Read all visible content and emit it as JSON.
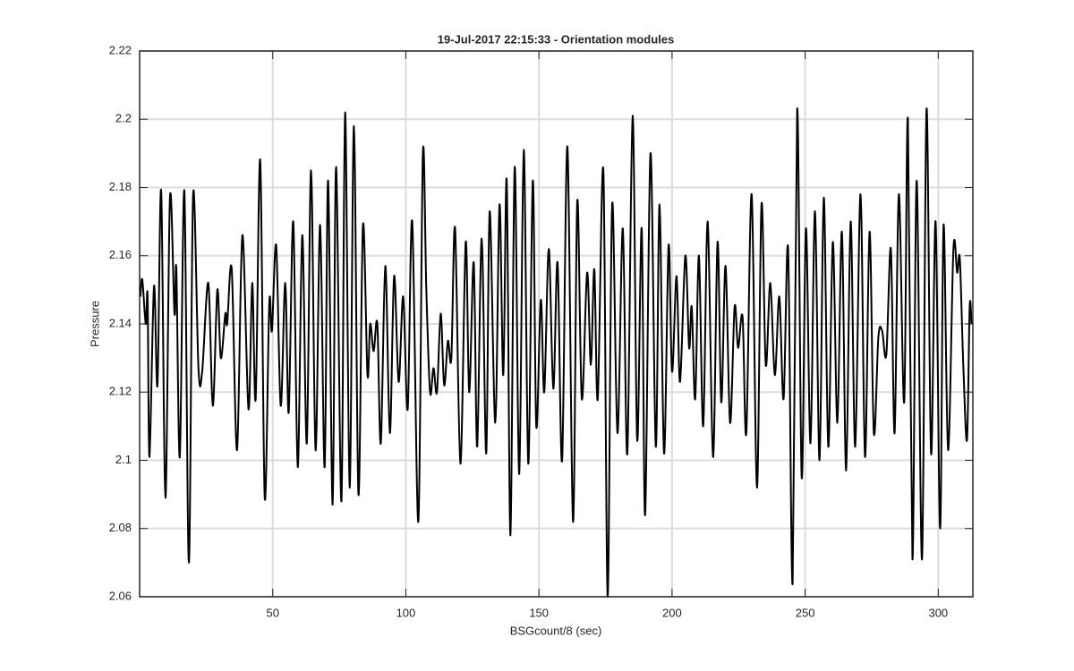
{
  "chart_data": {
    "type": "line",
    "title": "19-Jul-2017 22:15:33 - Orientation modules",
    "x_label": "BSGcount/8 (sec)",
    "y_label": "Pressure",
    "x": [
      0.3,
      1.0,
      2.3,
      3.0,
      3.7,
      5.4,
      6.7,
      8.1,
      9.7,
      11.4,
      13.1,
      13.8,
      15.1,
      16.8,
      18.5,
      20.1,
      22.1,
      23.5,
      25.8,
      27.5,
      29.2,
      30.5,
      32.2,
      32.9,
      34.6,
      36.6,
      38.6,
      40.9,
      42.3,
      43.6,
      45.3,
      47.0,
      48.7,
      49.7,
      51.3,
      53.0,
      54.7,
      56.0,
      57.7,
      59.4,
      61.1,
      62.8,
      64.4,
      66.1,
      67.8,
      69.5,
      70.8,
      72.5,
      73.8,
      75.8,
      77.2,
      78.9,
      80.5,
      82.2,
      83.9,
      85.6,
      86.6,
      87.9,
      89.3,
      90.6,
      92.3,
      94.0,
      95.6,
      97.3,
      99.0,
      100.7,
      102.4,
      104.7,
      106.4,
      107.7,
      109.1,
      110.4,
      111.7,
      113.1,
      114.4,
      115.8,
      117.1,
      118.5,
      120.5,
      122.5,
      123.8,
      125.5,
      126.8,
      128.5,
      130.2,
      131.5,
      133.6,
      135.2,
      136.6,
      137.9,
      139.3,
      140.9,
      142.6,
      144.3,
      146.0,
      147.7,
      149.0,
      150.7,
      152.0,
      153.7,
      155.4,
      157.0,
      158.7,
      160.7,
      162.8,
      164.4,
      166.1,
      168.1,
      169.5,
      170.8,
      172.1,
      174.2,
      175.8,
      177.5,
      179.5,
      181.5,
      183.2,
      185.2,
      186.9,
      188.6,
      189.9,
      191.9,
      193.9,
      195.3,
      197.0,
      198.7,
      200.0,
      201.7,
      203.0,
      205.0,
      206.4,
      207.4,
      208.7,
      210.1,
      211.7,
      213.4,
      215.4,
      217.1,
      218.5,
      220.1,
      221.8,
      223.5,
      224.8,
      226.5,
      227.9,
      229.9,
      231.9,
      233.6,
      235.2,
      236.9,
      238.6,
      240.3,
      241.9,
      243.6,
      245.3,
      247.0,
      248.7,
      250.3,
      252.0,
      253.7,
      255.4,
      257.0,
      258.7,
      260.4,
      262.1,
      263.8,
      265.4,
      267.1,
      268.8,
      270.8,
      272.5,
      274.2,
      275.8,
      277.5,
      278.9,
      280.5,
      282.2,
      283.6,
      285.2,
      287.2,
      288.6,
      290.3,
      291.9,
      293.9,
      295.6,
      297.3,
      299.0,
      300.7,
      302.0,
      303.7,
      305.7,
      307.1,
      308.1,
      309.4,
      310.8,
      311.8,
      312.5
    ],
    "series": [
      {
        "name": "Pressure",
        "color": "#000000",
        "values": [
          2.148,
          2.153,
          2.14,
          2.148,
          2.101,
          2.151,
          2.122,
          2.179,
          2.089,
          2.177,
          2.143,
          2.156,
          2.101,
          2.179,
          2.07,
          2.178,
          2.127,
          2.126,
          2.152,
          2.116,
          2.15,
          2.13,
          2.143,
          2.14,
          2.156,
          2.103,
          2.166,
          2.115,
          2.152,
          2.118,
          2.188,
          2.089,
          2.146,
          2.138,
          2.163,
          2.116,
          2.152,
          2.114,
          2.17,
          2.098,
          2.166,
          2.105,
          2.185,
          2.103,
          2.169,
          2.098,
          2.182,
          2.087,
          2.186,
          2.088,
          2.202,
          2.092,
          2.198,
          2.09,
          2.169,
          2.125,
          2.14,
          2.132,
          2.14,
          2.105,
          2.157,
          2.108,
          2.154,
          2.123,
          2.148,
          2.115,
          2.17,
          2.082,
          2.19,
          2.15,
          2.12,
          2.127,
          2.12,
          2.143,
          2.122,
          2.135,
          2.13,
          2.168,
          2.099,
          2.164,
          2.12,
          2.158,
          2.104,
          2.165,
          2.102,
          2.173,
          2.111,
          2.175,
          2.125,
          2.182,
          2.078,
          2.186,
          2.096,
          2.191,
          2.099,
          2.182,
          2.11,
          2.147,
          2.12,
          2.162,
          2.121,
          2.158,
          2.1,
          2.192,
          2.082,
          2.176,
          2.118,
          2.155,
          2.128,
          2.156,
          2.118,
          2.185,
          2.06,
          2.175,
          2.108,
          2.168,
          2.102,
          2.201,
          2.106,
          2.168,
          2.084,
          2.19,
          2.104,
          2.175,
          2.102,
          2.163,
          2.126,
          2.154,
          2.123,
          2.16,
          2.133,
          2.145,
          2.118,
          2.16,
          2.11,
          2.17,
          2.101,
          2.164,
          2.117,
          2.157,
          2.111,
          2.145,
          2.133,
          2.142,
          2.108,
          2.178,
          2.092,
          2.175,
          2.128,
          2.152,
          2.125,
          2.148,
          2.118,
          2.162,
          2.064,
          2.203,
          2.095,
          2.168,
          2.105,
          2.173,
          2.1,
          2.177,
          2.104,
          2.164,
          2.111,
          2.167,
          2.097,
          2.17,
          2.104,
          2.178,
          2.101,
          2.167,
          2.108,
          2.136,
          2.138,
          2.131,
          2.162,
          2.108,
          2.178,
          2.117,
          2.2,
          2.071,
          2.182,
          2.071,
          2.203,
          2.102,
          2.17,
          2.08,
          2.169,
          2.103,
          2.162,
          2.155,
          2.159,
          2.128,
          2.106,
          2.145,
          2.14
        ]
      }
    ],
    "xlim": [
      0,
      313
    ],
    "ylim": [
      2.06,
      2.22
    ],
    "xticks": [
      50,
      100,
      150,
      200,
      250,
      300
    ],
    "yticks": [
      2.06,
      2.08,
      2.1,
      2.12,
      2.14,
      2.16,
      2.18,
      2.2,
      2.22
    ],
    "grid": true
  }
}
